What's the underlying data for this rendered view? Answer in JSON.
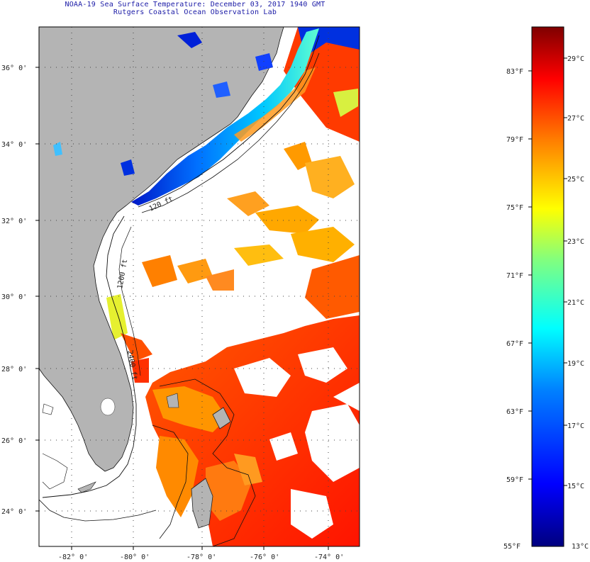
{
  "header": {
    "title": "NOAA-19 Sea Surface Temperature:  December 03, 2017 1940 GMT",
    "subtitle": "Rutgers Coastal Ocean Observation Lab"
  },
  "map": {
    "lat_labels": [
      "36° 0'",
      "34° 0'",
      "32° 0'",
      "30° 0'",
      "28° 0'",
      "26° 0'",
      "24° 0'"
    ],
    "lon_labels": [
      "-82° 0'",
      "-80° 0'",
      "-78° 0'",
      "-76° 0'",
      "-74° 0'"
    ],
    "contour_labels": [
      "120 ft",
      "1200 ft",
      "2400 ft"
    ],
    "colors": {
      "land": "#b4b4b4",
      "cloud": "#ffffff"
    }
  },
  "colorbar": {
    "fahrenheit_labels": [
      "83°F",
      "79°F",
      "75°F",
      "71°F",
      "67°F",
      "63°F",
      "59°F",
      "55°F"
    ],
    "celsius_labels": [
      "29°C",
      "27°C",
      "25°C",
      "23°C",
      "21°C",
      "19°C",
      "17°C",
      "15°C",
      "13°C"
    ],
    "stops": [
      "#00007f",
      "#0000ff",
      "#0080ff",
      "#00ffff",
      "#80ff80",
      "#ffff00",
      "#ff8000",
      "#ff0000",
      "#7f0000"
    ]
  }
}
